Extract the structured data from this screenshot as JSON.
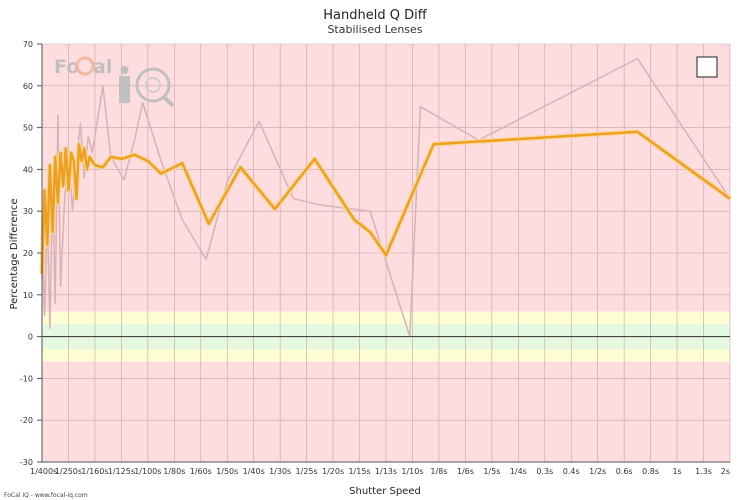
{
  "chart_data": {
    "type": "line",
    "title": "Handheld Q Diff",
    "subtitle": "Stabilised Lenses",
    "xlabel": "Shutter Speed",
    "ylabel": "Percentage Difference",
    "ylim": [
      -30,
      70
    ],
    "yticks": [
      "-30",
      "-20",
      "-10",
      "0",
      "10",
      "20",
      "30",
      "40",
      "50",
      "60",
      "70"
    ],
    "xticks": [
      "1/400s",
      "1/250s",
      "1/160s",
      "1/125s",
      "1/100s",
      "1/80s",
      "1/60s",
      "1/50s",
      "1/40s",
      "1/30s",
      "1/25s",
      "1/20s",
      "1/15s",
      "1/13s",
      "1/10s",
      "1/8s",
      "1/6s",
      "1/5s",
      "1/4s",
      "0.3s",
      "0.4s",
      "1/2s",
      "0.6s",
      "0.8s",
      "1s",
      "1.3s",
      "2s"
    ],
    "grid": true,
    "background_bands": [
      {
        "from": -30,
        "to": -6,
        "color": "#fddde0"
      },
      {
        "from": -6,
        "to": -3,
        "color": "#fdfdd4"
      },
      {
        "from": -3,
        "to": 3,
        "color": "#e4f9df"
      },
      {
        "from": 3,
        "to": 6,
        "color": "#fdfdd4"
      },
      {
        "from": 6,
        "to": 70,
        "color": "#fddde0"
      }
    ],
    "series": [
      {
        "color": "#d8b2b6",
        "points": [
          [
            0.0,
            25
          ],
          [
            0.1,
            5
          ],
          [
            0.2,
            30
          ],
          [
            0.3,
            2
          ],
          [
            0.4,
            38
          ],
          [
            0.5,
            8
          ],
          [
            0.6,
            53
          ],
          [
            0.7,
            12
          ],
          [
            0.85,
            32
          ],
          [
            1.0,
            45
          ],
          [
            1.15,
            30
          ],
          [
            1.3,
            42
          ],
          [
            1.45,
            51
          ],
          [
            1.6,
            38
          ],
          [
            1.75,
            48
          ],
          [
            1.9,
            44
          ],
          [
            2.3,
            60
          ],
          [
            2.6,
            43
          ],
          [
            3.1,
            37.5
          ],
          [
            3.5,
            47
          ],
          [
            3.8,
            56
          ],
          [
            4.5,
            42
          ],
          [
            5.3,
            28
          ],
          [
            6.2,
            18.5
          ],
          [
            7.0,
            37
          ],
          [
            8.2,
            51.5
          ],
          [
            9.5,
            33
          ],
          [
            10.5,
            31.5
          ],
          [
            12.4,
            30
          ],
          [
            13.9,
            0
          ],
          [
            14.3,
            55
          ],
          [
            16.5,
            47
          ],
          [
            22.5,
            66.5
          ],
          [
            26.0,
            33
          ]
        ]
      },
      {
        "color": "#f0a020",
        "points": [
          [
            0.0,
            15
          ],
          [
            0.1,
            35
          ],
          [
            0.2,
            22
          ],
          [
            0.3,
            41
          ],
          [
            0.4,
            25
          ],
          [
            0.5,
            43
          ],
          [
            0.6,
            32
          ],
          [
            0.7,
            44
          ],
          [
            0.8,
            36
          ],
          [
            0.9,
            45
          ],
          [
            1.0,
            35
          ],
          [
            1.1,
            44
          ],
          [
            1.2,
            42
          ],
          [
            1.3,
            33
          ],
          [
            1.4,
            46
          ],
          [
            1.5,
            42
          ],
          [
            1.6,
            45
          ],
          [
            1.7,
            40
          ],
          [
            1.8,
            43
          ],
          [
            2.0,
            41
          ],
          [
            2.3,
            40.5
          ],
          [
            2.6,
            43
          ],
          [
            3.0,
            42.5
          ],
          [
            3.5,
            43.5
          ],
          [
            4.0,
            42
          ],
          [
            4.5,
            39
          ],
          [
            5.3,
            41.5
          ],
          [
            6.3,
            27
          ],
          [
            7.5,
            40.5
          ],
          [
            8.8,
            30.5
          ],
          [
            10.3,
            42.5
          ],
          [
            11.8,
            28
          ],
          [
            12.4,
            25
          ],
          [
            13.0,
            19.5
          ],
          [
            14.8,
            46
          ],
          [
            22.5,
            49
          ],
          [
            26.0,
            33
          ]
        ]
      }
    ],
    "zero_line": 0,
    "legend_box": true
  },
  "branding": {
    "logo_left": "Fo",
    "logo_right": "al",
    "logo_iq": "iQ",
    "credit": "FoCal IQ - www.focal-iq.com"
  },
  "colors": {
    "grid": "#c8a3a8",
    "axis": "#555555",
    "zero_line": "#333333",
    "logo": "#c0c0c0",
    "logo_accent": "#f2b8a0"
  }
}
